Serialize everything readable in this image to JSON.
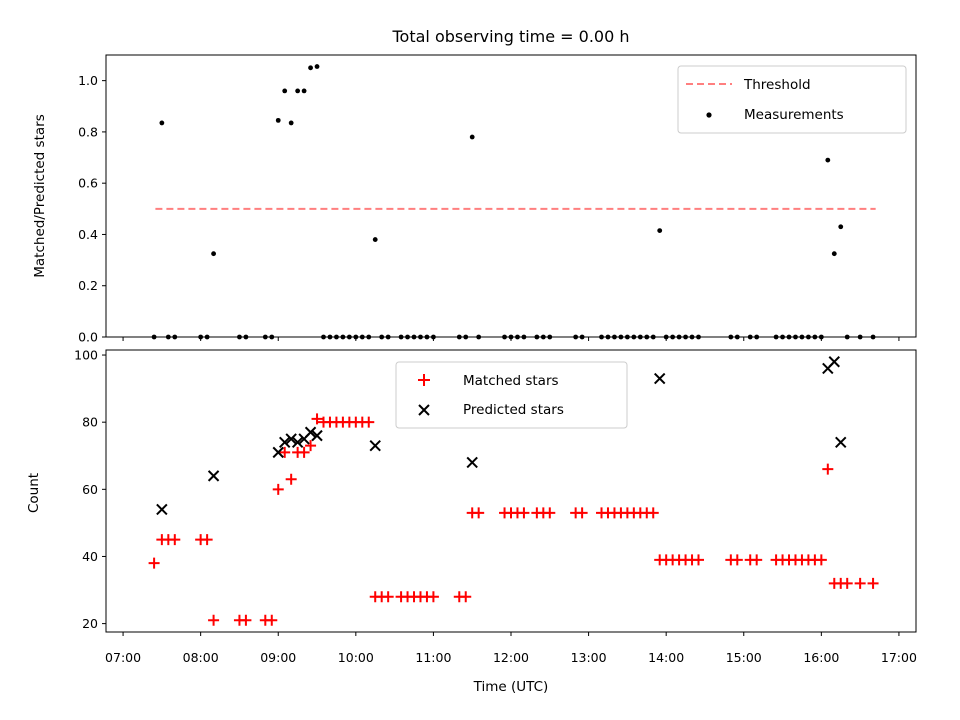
{
  "chart_data": [
    {
      "type": "scatter",
      "title": "Total observing time = 0.00 h",
      "xlabel": "",
      "ylabel": "Matched/Predicted stars",
      "xlim": [
        "07:00",
        "17:00"
      ],
      "ylim": [
        0,
        1.1
      ],
      "yticks": [
        "0.0",
        "0.2",
        "0.4",
        "0.6",
        "0.8",
        "1.0"
      ],
      "grid": false,
      "legend_position": "top-right",
      "threshold": {
        "name": "Threshold",
        "value": 0.5,
        "x": [
          "07:25",
          "16:42"
        ],
        "color": "#ff7f7f"
      },
      "series": [
        {
          "name": "Measurements",
          "color": "#000000",
          "points": [
            [
              "07:24",
              0
            ],
            [
              "07:30",
              0.835
            ],
            [
              "07:35",
              0
            ],
            [
              "07:40",
              0
            ],
            [
              "08:00",
              0
            ],
            [
              "08:05",
              0
            ],
            [
              "08:10",
              0.325
            ],
            [
              "08:30",
              0
            ],
            [
              "08:35",
              0
            ],
            [
              "08:50",
              0
            ],
            [
              "08:55",
              0
            ],
            [
              "09:00",
              0.845
            ],
            [
              "09:05",
              0.96
            ],
            [
              "09:10",
              0.835
            ],
            [
              "09:15",
              0.96
            ],
            [
              "09:20",
              0.96
            ],
            [
              "09:25",
              1.05
            ],
            [
              "09:30",
              1.055
            ],
            [
              "09:35",
              0
            ],
            [
              "09:40",
              0
            ],
            [
              "09:45",
              0
            ],
            [
              "09:50",
              0
            ],
            [
              "09:55",
              0
            ],
            [
              "10:00",
              0
            ],
            [
              "10:05",
              0
            ],
            [
              "10:10",
              0
            ],
            [
              "10:15",
              0.38
            ],
            [
              "10:20",
              0
            ],
            [
              "10:25",
              0
            ],
            [
              "10:35",
              0
            ],
            [
              "10:40",
              0
            ],
            [
              "10:45",
              0
            ],
            [
              "10:50",
              0
            ],
            [
              "10:55",
              0
            ],
            [
              "11:00",
              0
            ],
            [
              "11:20",
              0
            ],
            [
              "11:25",
              0
            ],
            [
              "11:30",
              0.78
            ],
            [
              "11:35",
              0
            ],
            [
              "11:55",
              0
            ],
            [
              "12:00",
              0
            ],
            [
              "12:05",
              0
            ],
            [
              "12:10",
              0
            ],
            [
              "12:20",
              0
            ],
            [
              "12:25",
              0
            ],
            [
              "12:30",
              0
            ],
            [
              "12:50",
              0
            ],
            [
              "12:55",
              0
            ],
            [
              "13:10",
              0
            ],
            [
              "13:15",
              0
            ],
            [
              "13:20",
              0
            ],
            [
              "13:25",
              0
            ],
            [
              "13:30",
              0
            ],
            [
              "13:35",
              0
            ],
            [
              "13:40",
              0
            ],
            [
              "13:45",
              0
            ],
            [
              "13:50",
              0
            ],
            [
              "13:55",
              0.415
            ],
            [
              "14:00",
              0
            ],
            [
              "14:05",
              0
            ],
            [
              "14:10",
              0
            ],
            [
              "14:15",
              0
            ],
            [
              "14:20",
              0
            ],
            [
              "14:25",
              0
            ],
            [
              "14:50",
              0
            ],
            [
              "14:55",
              0
            ],
            [
              "15:05",
              0
            ],
            [
              "15:10",
              0
            ],
            [
              "15:25",
              0
            ],
            [
              "15:30",
              0
            ],
            [
              "15:35",
              0
            ],
            [
              "15:40",
              0
            ],
            [
              "15:45",
              0
            ],
            [
              "15:50",
              0
            ],
            [
              "15:55",
              0
            ],
            [
              "16:00",
              0
            ],
            [
              "16:05",
              0.69
            ],
            [
              "16:10",
              0.325
            ],
            [
              "16:15",
              0.43
            ],
            [
              "16:20",
              0
            ],
            [
              "16:30",
              0
            ],
            [
              "16:40",
              0
            ]
          ]
        }
      ]
    },
    {
      "type": "scatter",
      "title": "",
      "xlabel": "Time (UTC)",
      "ylabel": "Count",
      "xlim": [
        "07:00",
        "17:00"
      ],
      "xticks": [
        "07:00",
        "08:00",
        "09:00",
        "10:00",
        "11:00",
        "12:00",
        "13:00",
        "14:00",
        "15:00",
        "16:00",
        "17:00"
      ],
      "ylim": [
        17.5,
        101.5
      ],
      "yticks": [
        "20",
        "40",
        "60",
        "80",
        "100"
      ],
      "grid": false,
      "legend_position": "top-center",
      "series": [
        {
          "name": "Matched stars",
          "color": "#ff0000",
          "marker": "plus",
          "points": [
            [
              "07:24",
              38
            ],
            [
              "07:30",
              45
            ],
            [
              "07:35",
              45
            ],
            [
              "07:40",
              45
            ],
            [
              "08:00",
              45
            ],
            [
              "08:05",
              45
            ],
            [
              "08:10",
              21
            ],
            [
              "08:30",
              21
            ],
            [
              "08:35",
              21
            ],
            [
              "08:50",
              21
            ],
            [
              "08:55",
              21
            ],
            [
              "09:00",
              60
            ],
            [
              "09:05",
              71
            ],
            [
              "09:10",
              63
            ],
            [
              "09:15",
              71
            ],
            [
              "09:20",
              71
            ],
            [
              "09:25",
              73
            ],
            [
              "09:30",
              81
            ],
            [
              "09:35",
              80
            ],
            [
              "09:40",
              80
            ],
            [
              "09:45",
              80
            ],
            [
              "09:50",
              80
            ],
            [
              "09:55",
              80
            ],
            [
              "10:00",
              80
            ],
            [
              "10:05",
              80
            ],
            [
              "10:10",
              80
            ],
            [
              "10:15",
              28
            ],
            [
              "10:20",
              28
            ],
            [
              "10:25",
              28
            ],
            [
              "10:35",
              28
            ],
            [
              "10:40",
              28
            ],
            [
              "10:45",
              28
            ],
            [
              "10:50",
              28
            ],
            [
              "10:55",
              28
            ],
            [
              "11:00",
              28
            ],
            [
              "11:20",
              28
            ],
            [
              "11:25",
              28
            ],
            [
              "11:30",
              53
            ],
            [
              "11:35",
              53
            ],
            [
              "11:55",
              53
            ],
            [
              "12:00",
              53
            ],
            [
              "12:05",
              53
            ],
            [
              "12:10",
              53
            ],
            [
              "12:20",
              53
            ],
            [
              "12:25",
              53
            ],
            [
              "12:30",
              53
            ],
            [
              "12:50",
              53
            ],
            [
              "12:55",
              53
            ],
            [
              "13:10",
              53
            ],
            [
              "13:15",
              53
            ],
            [
              "13:20",
              53
            ],
            [
              "13:25",
              53
            ],
            [
              "13:30",
              53
            ],
            [
              "13:35",
              53
            ],
            [
              "13:40",
              53
            ],
            [
              "13:45",
              53
            ],
            [
              "13:50",
              53
            ],
            [
              "13:55",
              39
            ],
            [
              "14:00",
              39
            ],
            [
              "14:05",
              39
            ],
            [
              "14:10",
              39
            ],
            [
              "14:15",
              39
            ],
            [
              "14:20",
              39
            ],
            [
              "14:25",
              39
            ],
            [
              "14:50",
              39
            ],
            [
              "14:55",
              39
            ],
            [
              "15:05",
              39
            ],
            [
              "15:10",
              39
            ],
            [
              "15:25",
              39
            ],
            [
              "15:30",
              39
            ],
            [
              "15:35",
              39
            ],
            [
              "15:40",
              39
            ],
            [
              "15:45",
              39
            ],
            [
              "15:50",
              39
            ],
            [
              "15:55",
              39
            ],
            [
              "16:00",
              39
            ],
            [
              "16:05",
              66
            ],
            [
              "16:10",
              32
            ],
            [
              "16:15",
              32
            ],
            [
              "16:20",
              32
            ],
            [
              "16:30",
              32
            ],
            [
              "16:40",
              32
            ]
          ]
        },
        {
          "name": "Predicted stars",
          "color": "#000000",
          "marker": "x",
          "points": [
            [
              "07:30",
              54
            ],
            [
              "08:10",
              64
            ],
            [
              "09:00",
              71
            ],
            [
              "09:05",
              74
            ],
            [
              "09:10",
              75
            ],
            [
              "09:15",
              74
            ],
            [
              "09:20",
              75
            ],
            [
              "09:25",
              77
            ],
            [
              "09:30",
              76
            ],
            [
              "10:15",
              73
            ],
            [
              "11:30",
              68
            ],
            [
              "13:55",
              93
            ],
            [
              "16:05",
              96
            ],
            [
              "16:10",
              98
            ],
            [
              "16:15",
              74
            ]
          ]
        }
      ]
    }
  ]
}
